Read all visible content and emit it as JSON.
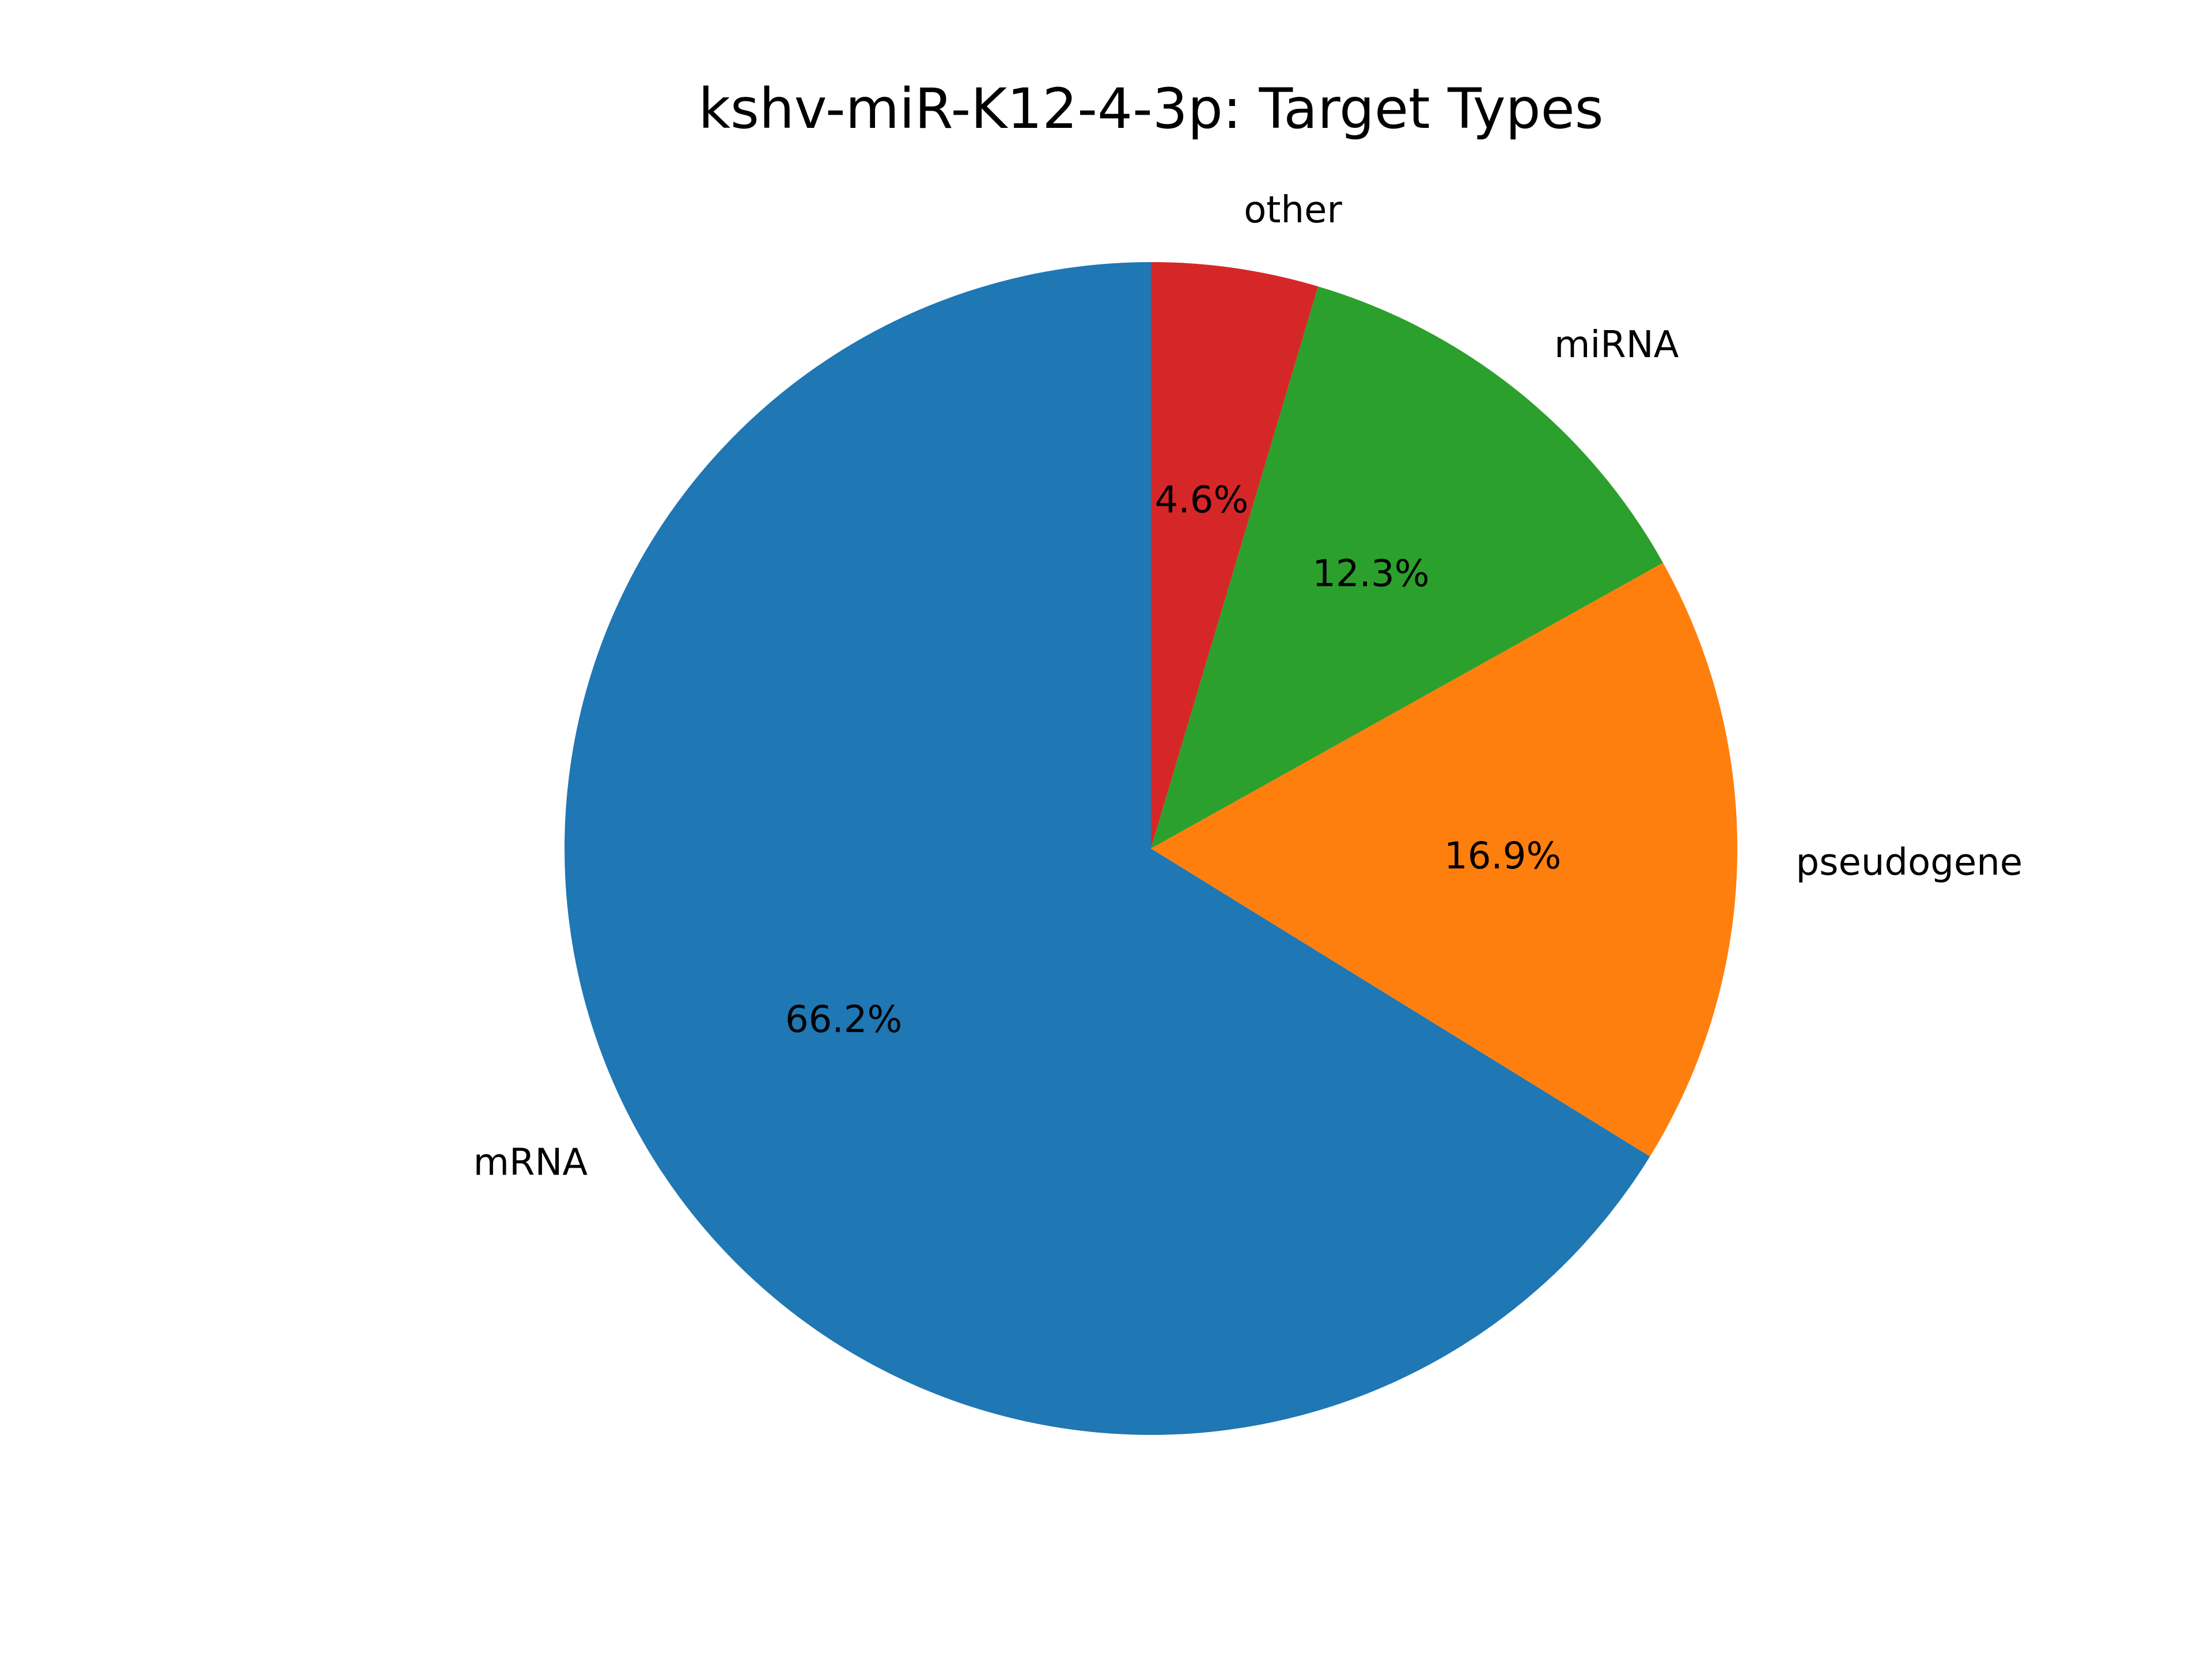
{
  "chart_data": {
    "type": "pie",
    "title": "kshv-miR-K12-4-3p: Target Types",
    "labels": [
      "mRNA",
      "pseudogene",
      "miRNA",
      "other"
    ],
    "values": [
      66.2,
      16.9,
      12.3,
      4.6
    ],
    "value_labels": [
      "66.2%",
      "16.9%",
      "12.3%",
      "4.6%"
    ],
    "colors": [
      "#1f77b4",
      "#ff7f0e",
      "#2ca02c",
      "#d62728"
    ],
    "start_angle_deg": 90,
    "direction": "counterclockwise",
    "legend": "none"
  }
}
